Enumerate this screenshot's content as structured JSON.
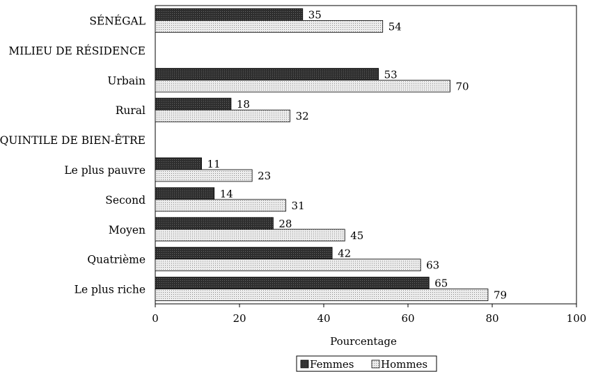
{
  "chart_data": {
    "type": "bar",
    "orientation": "horizontal",
    "title": "",
    "xlabel": "Pourcentage",
    "ylabel": "",
    "xlim": [
      0,
      100
    ],
    "xticks": [
      0,
      20,
      40,
      60,
      80,
      100
    ],
    "grid": false,
    "legend_position": "bottom",
    "rows": [
      {
        "label": "SÉNÉGAL",
        "kind": "category"
      },
      {
        "label": "MILIEU DE RÉSIDENCE",
        "kind": "header"
      },
      {
        "label": "Urbain",
        "kind": "category"
      },
      {
        "label": "Rural",
        "kind": "category"
      },
      {
        "label": "QUINTILE DE BIEN-ÊTRE",
        "kind": "header"
      },
      {
        "label": "Le plus pauvre",
        "kind": "category"
      },
      {
        "label": "Second",
        "kind": "category"
      },
      {
        "label": "Moyen",
        "kind": "category"
      },
      {
        "label": "Quatrième",
        "kind": "category"
      },
      {
        "label": "Le plus riche",
        "kind": "category"
      }
    ],
    "series": [
      {
        "name": "Femmes",
        "color": "#3a3a3a",
        "values": [
          35,
          null,
          53,
          18,
          null,
          11,
          14,
          28,
          42,
          65
        ]
      },
      {
        "name": "Hommes",
        "color": "#e6e6e6",
        "values": [
          54,
          null,
          70,
          32,
          null,
          23,
          31,
          45,
          63,
          79
        ]
      }
    ]
  }
}
